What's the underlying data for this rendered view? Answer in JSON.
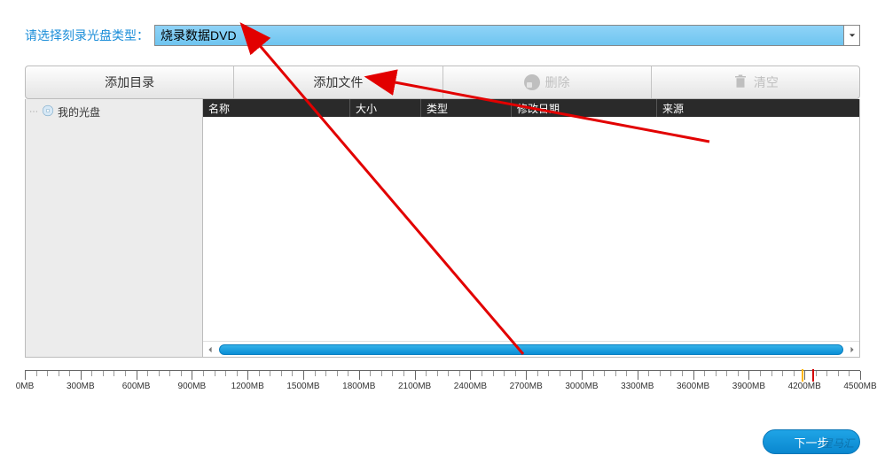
{
  "select": {
    "label": "请选择刻录光盘类型：",
    "value": "烧录数据DVD"
  },
  "toolbar": {
    "add_folder": "添加目录",
    "add_file": "添加文件",
    "delete": "删除",
    "clear": "清空"
  },
  "tree": {
    "root": "我的光盘"
  },
  "columns": {
    "name": "名称",
    "size": "大小",
    "type": "类型",
    "date": "修改日期",
    "source": "来源"
  },
  "ruler": {
    "labels": [
      "0MB",
      "300MB",
      "600MB",
      "900MB",
      "1200MB",
      "1500MB",
      "1800MB",
      "2100MB",
      "2400MB",
      "2700MB",
      "3000MB",
      "3300MB",
      "3600MB",
      "3900MB",
      "4200MB",
      "4500MB"
    ],
    "major_count": 16,
    "yellow_marker_pct": 93.0,
    "red_marker_pct": 94.3
  },
  "footer": {
    "next": "下一步",
    "watermark": "星马汇"
  },
  "colors": {
    "link": "#1a8dd8",
    "toolbar_grad_top": "#fefefe",
    "toolbar_grad_bot": "#e4e4e4",
    "dropdown_grad_top": "#8fd3f7",
    "dropdown_grad_bot": "#6fc5f0",
    "header_bg": "#2a2a2a",
    "scroll_top": "#34b1e8",
    "scroll_bot": "#0a8fd6",
    "btn_top": "#1fa4e6",
    "btn_bot": "#0a87cf",
    "disabled": "#bfbfbf"
  }
}
